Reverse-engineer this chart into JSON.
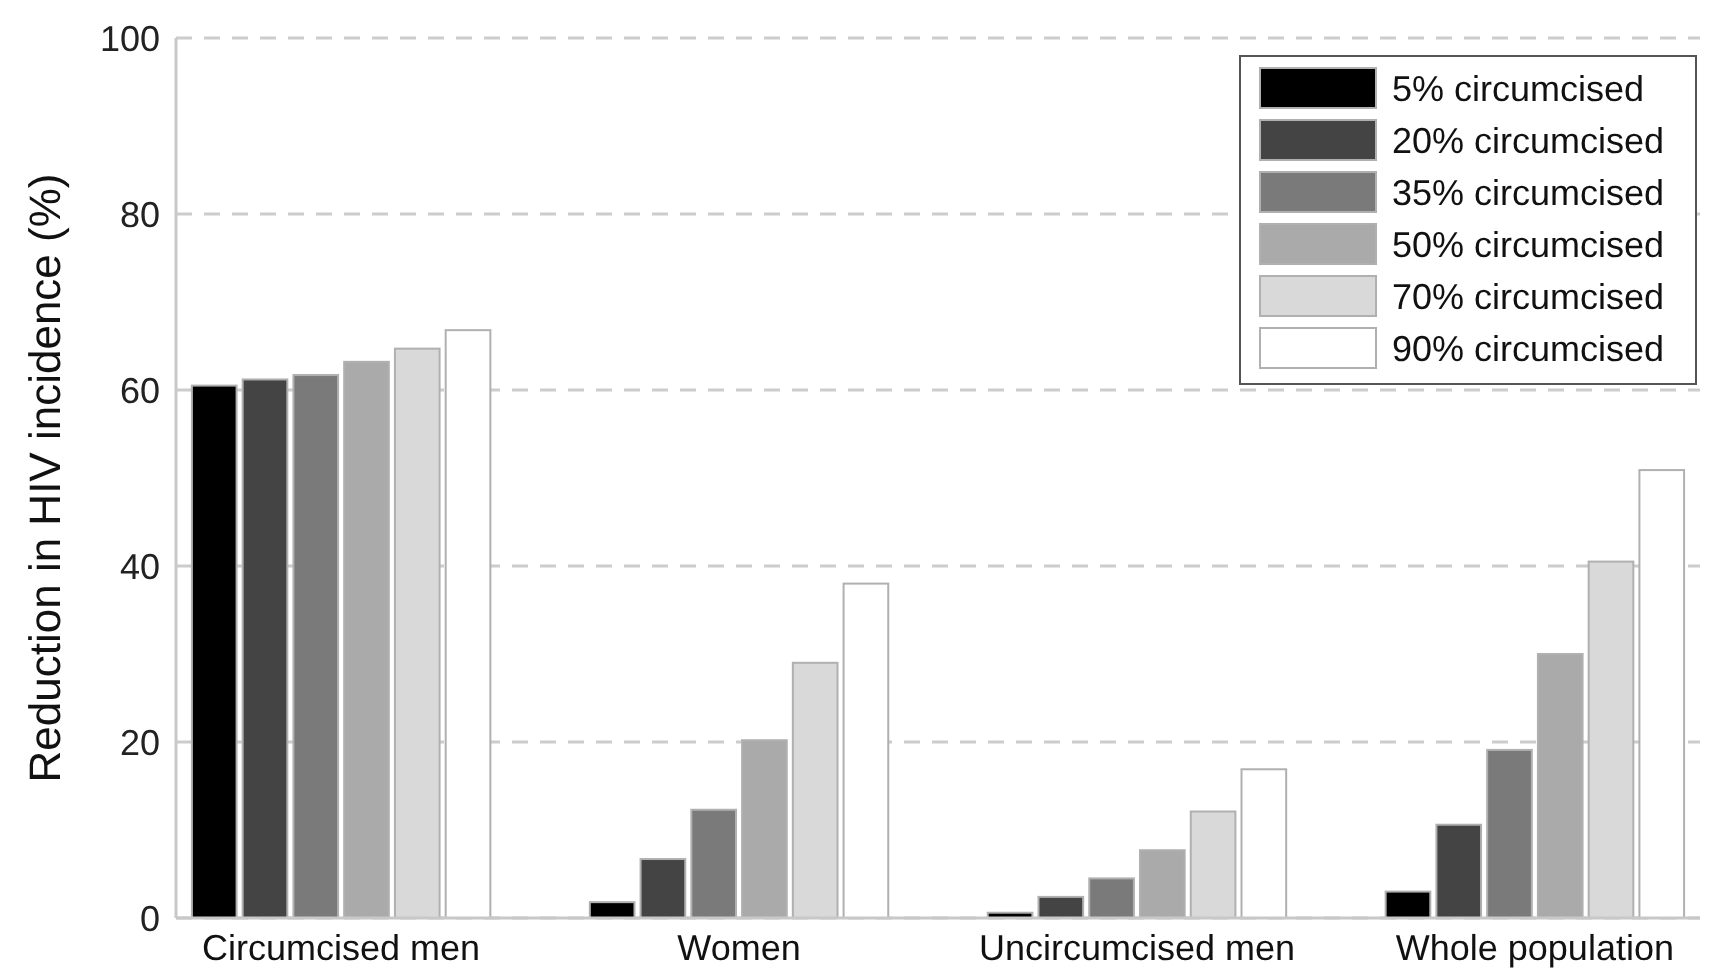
{
  "chart_data": {
    "type": "bar",
    "ylabel": "Reduction in HIV incidence (%)",
    "categories": [
      "Circumcised men",
      "Women",
      "Uncircumcised men",
      "Whole population"
    ],
    "series": [
      {
        "name": "5% circumcised",
        "color": "#000000",
        "values": [
          60.5,
          1.8,
          0.6,
          3.0
        ]
      },
      {
        "name": "20% circumcised",
        "color": "#444444",
        "values": [
          61.2,
          6.7,
          2.4,
          10.6
        ]
      },
      {
        "name": "35% circumcised",
        "color": "#7a7a7a",
        "values": [
          61.7,
          12.3,
          4.5,
          19.1
        ]
      },
      {
        "name": "50% circumcised",
        "color": "#aaaaaa",
        "values": [
          63.2,
          20.2,
          7.7,
          30.0
        ]
      },
      {
        "name": "70% circumcised",
        "color": "#d9d9d9",
        "values": [
          64.7,
          29.0,
          12.1,
          40.5
        ]
      },
      {
        "name": "90% circumcised",
        "color": "#ffffff",
        "values": [
          66.8,
          38.0,
          16.9,
          50.9
        ]
      }
    ],
    "ylim": [
      0,
      100
    ],
    "yticks": [
      0,
      20,
      40,
      60,
      80,
      100
    ],
    "grid": "y",
    "legend": "top right"
  }
}
